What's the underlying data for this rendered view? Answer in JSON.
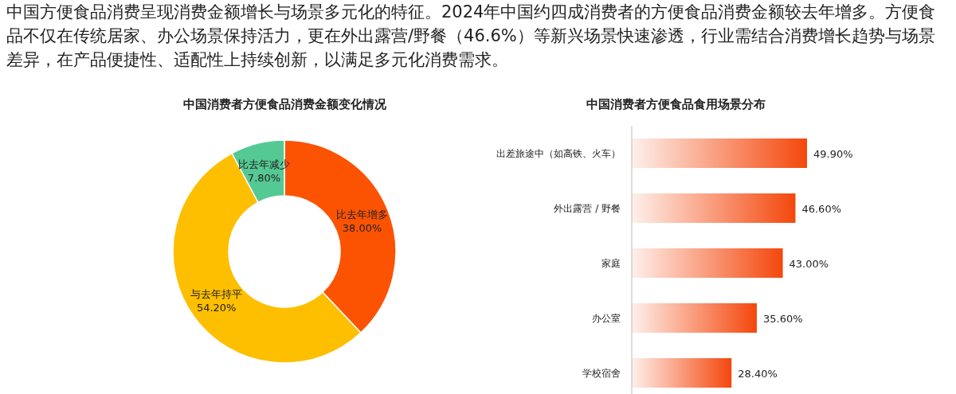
{
  "chart_data": [
    {
      "type": "other",
      "annotations": [
        "中国方便食品消费呈现消费金额增长与场景多元化的特征。2024年中国约四成消费者的方便食品消费金额较去年增多。方便食品不仅在传统居家、办公场景保持活力，更在外出露营/野餐（46.6%）等新兴场景快速渗透，行业需结合消费增长趋势与场景差异，在产品便捷性、适配性上持续创新，以满足多元化消费需求。"
      ]
    },
    {
      "type": "donut",
      "title": "中国消费者方便食品消费金额变化情况",
      "categories": [
        "比去年增多",
        "与去年持平",
        "比去年减少"
      ],
      "values": [
        38.0,
        54.2,
        7.8
      ],
      "colors": [
        "#fc5303",
        "#fdbf00",
        "#55c993"
      ],
      "value_labels": [
        "38.00%",
        "54.20%",
        "7.80%"
      ]
    },
    {
      "type": "bar",
      "orientation": "horizontal",
      "title": "中国消费者方便食品食用场景分布",
      "categories": [
        "出差旅途中（如高铁、火车）",
        "外出露营 / 野餐",
        "家庭",
        "办公室",
        "学校宿舍"
      ],
      "values": [
        49.9,
        46.6,
        43.0,
        35.6,
        28.4
      ],
      "color": "#f4470c",
      "value_labels": [
        "49.90%",
        "46.60%",
        "43.00%",
        "35.60%",
        "28.40%"
      ]
    }
  ]
}
